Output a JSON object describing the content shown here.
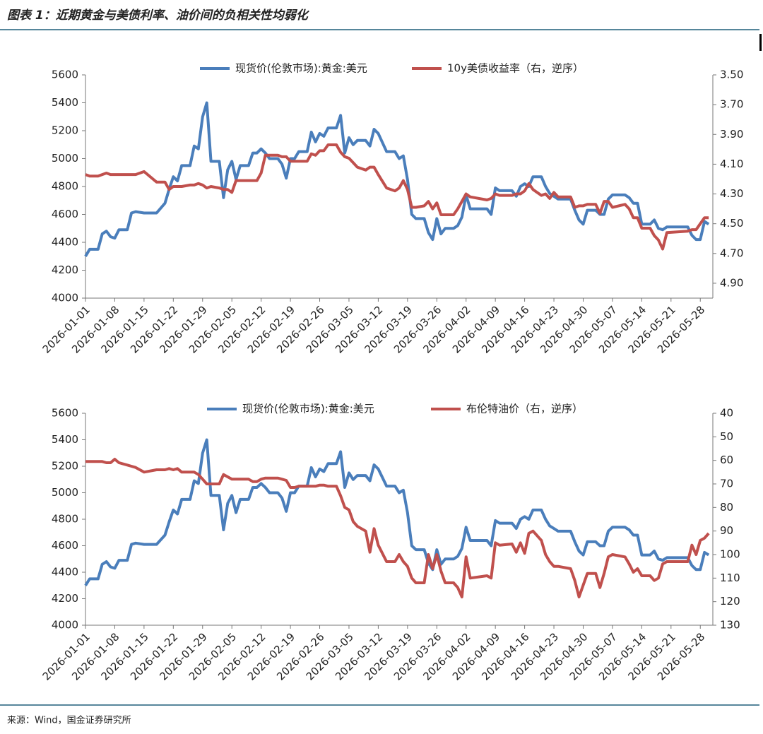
{
  "title": "图表 1：近期黄金与美债利率、油价间的负相关性均弱化",
  "source": "来源：Wind，国金证券研究所",
  "chart_data": [
    {
      "type": "line",
      "x": [
        "2026-01-01",
        "2026-01-02",
        "2026-01-04",
        "2026-01-05",
        "2026-01-06",
        "2026-01-07",
        "2026-01-08",
        "2026-01-09",
        "2026-01-11",
        "2026-01-12",
        "2026-01-13",
        "2026-01-15",
        "2026-01-18",
        "2026-01-20",
        "2026-01-21",
        "2026-01-22",
        "2026-01-23",
        "2026-01-24",
        "2026-01-26",
        "2026-01-27",
        "2026-01-28",
        "2026-01-29",
        "2026-01-30",
        "2026-01-31",
        "2026-02-02",
        "2026-02-03",
        "2026-02-04",
        "2026-02-05",
        "2026-02-06",
        "2026-02-07",
        "2026-02-09",
        "2026-02-10",
        "2026-02-11",
        "2026-02-12",
        "2026-02-13",
        "2026-02-14",
        "2026-02-16",
        "2026-02-17",
        "2026-02-18",
        "2026-02-19",
        "2026-02-20",
        "2026-02-21",
        "2026-02-23",
        "2026-02-24",
        "2026-02-25",
        "2026-02-26",
        "2026-02-27",
        "2026-02-28",
        "2026-03-02",
        "2026-03-03",
        "2026-03-04",
        "2026-03-05",
        "2026-03-06",
        "2026-03-07",
        "2026-03-09",
        "2026-03-10",
        "2026-03-11",
        "2026-03-12",
        "2026-03-14",
        "2026-03-16",
        "2026-03-17",
        "2026-03-18",
        "2026-03-19",
        "2026-03-20",
        "2026-03-21",
        "2026-03-23",
        "2026-03-24",
        "2026-03-25",
        "2026-03-26",
        "2026-03-27",
        "2026-03-28",
        "2026-03-30",
        "2026-03-31",
        "2026-04-01",
        "2026-04-02",
        "2026-04-03",
        "2026-04-07",
        "2026-04-08",
        "2026-04-09",
        "2026-04-10",
        "2026-04-13",
        "2026-04-14",
        "2026-04-15",
        "2026-04-16",
        "2026-04-17",
        "2026-04-18",
        "2026-04-20",
        "2026-04-21",
        "2026-04-22",
        "2026-04-23",
        "2026-04-24",
        "2026-04-27",
        "2026-04-28",
        "2026-04-29",
        "2026-04-30",
        "2026-05-01",
        "2026-05-03",
        "2026-05-04",
        "2026-05-05",
        "2026-05-06",
        "2026-05-07",
        "2026-05-10",
        "2026-05-11",
        "2026-05-12",
        "2026-05-13",
        "2026-05-14",
        "2026-05-16",
        "2026-05-17",
        "2026-05-18",
        "2026-05-19",
        "2026-05-20",
        "2026-05-25",
        "2026-05-26",
        "2026-05-27",
        "2026-05-28",
        "2026-05-29",
        "2026-05-30"
      ],
      "xlim": [
        "2026-01-01",
        "2026-05-31"
      ],
      "xticks": [
        "2026-01-01",
        "2026-01-08",
        "2026-01-15",
        "2026-01-22",
        "2026-01-29",
        "2026-02-05",
        "2026-02-12",
        "2026-02-19",
        "2026-02-26",
        "2026-03-05",
        "2026-03-12",
        "2026-03-19",
        "2026-03-26",
        "2026-04-02",
        "2026-04-09",
        "2026-04-16",
        "2026-04-23",
        "2026-04-30",
        "2026-05-07",
        "2026-05-14",
        "2026-05-21",
        "2026-05-28"
      ],
      "ylim": [
        4000,
        5600
      ],
      "yticks": [
        4000,
        4200,
        4400,
        4600,
        4800,
        5000,
        5200,
        5400,
        5600
      ],
      "y2lim": [
        3.5,
        5.0
      ],
      "y2_inverted": true,
      "y2ticks": [
        {
          "value": 3.5,
          "label": "3.50"
        },
        {
          "value": 3.7,
          "label": "3.70"
        },
        {
          "value": 3.9,
          "label": "3.90"
        },
        {
          "value": 4.1,
          "label": "4.10"
        },
        {
          "value": 4.3,
          "label": "4.30"
        },
        {
          "value": 4.5,
          "label": "4.50"
        },
        {
          "value": 4.7,
          "label": "4.70"
        },
        {
          "value": 4.9,
          "label": "4.90"
        }
      ],
      "grid": false,
      "legend": "top",
      "series": [
        {
          "name": "现货价(伦敦市场):黄金:美元",
          "color": "#4a7ebb",
          "axis": "y",
          "values": [
            4300,
            4350,
            4350,
            4460,
            4480,
            4440,
            4430,
            4490,
            4490,
            4610,
            4620,
            4610,
            4610,
            4680,
            4780,
            4870,
            4840,
            4950,
            4950,
            5090,
            5070,
            5300,
            5400,
            4980,
            4980,
            4720,
            4920,
            4980,
            4850,
            4950,
            4950,
            5040,
            5040,
            5070,
            5040,
            5000,
            5000,
            4960,
            4860,
            5000,
            5000,
            5050,
            5050,
            5190,
            5120,
            5180,
            5160,
            5220,
            5220,
            5310,
            5040,
            5150,
            5100,
            5130,
            5130,
            5090,
            5210,
            5180,
            5050,
            5050,
            5000,
            5020,
            4850,
            4600,
            4570,
            4570,
            4470,
            4420,
            4570,
            4460,
            4500,
            4500,
            4520,
            4580,
            4740,
            4640,
            4640,
            4600,
            4790,
            4770,
            4770,
            4730,
            4800,
            4820,
            4800,
            4870,
            4870,
            4800,
            4750,
            4730,
            4710,
            4710,
            4630,
            4560,
            4530,
            4630,
            4630,
            4600,
            4600,
            4710,
            4740,
            4740,
            4720,
            4680,
            4680,
            4530,
            4530,
            4560,
            4500,
            4490,
            4510,
            4510,
            4450,
            4420,
            4420,
            4550,
            4530
          ]
        },
        {
          "name": "10y美债收益率（右，逆序）",
          "color": "#c0504d",
          "axis": "y2",
          "values": [
            4.17,
            4.18,
            4.18,
            4.17,
            4.16,
            4.17,
            4.17,
            4.17,
            4.17,
            4.17,
            4.17,
            4.15,
            4.22,
            4.22,
            4.27,
            4.25,
            4.25,
            4.25,
            4.24,
            4.24,
            4.23,
            4.24,
            4.26,
            4.25,
            4.26,
            4.27,
            4.27,
            4.29,
            4.21,
            4.21,
            4.21,
            4.21,
            4.21,
            4.16,
            4.04,
            4.04,
            4.04,
            4.05,
            4.05,
            4.08,
            4.08,
            4.08,
            4.08,
            4.03,
            4.04,
            4.01,
            4.01,
            3.97,
            3.97,
            4.02,
            4.05,
            4.06,
            4.09,
            4.12,
            4.14,
            4.12,
            4.12,
            4.17,
            4.26,
            4.28,
            4.26,
            4.21,
            4.27,
            4.39,
            4.39,
            4.38,
            4.35,
            4.4,
            4.36,
            4.44,
            4.44,
            4.44,
            4.4,
            4.35,
            4.3,
            4.32,
            4.34,
            4.33,
            4.3,
            4.31,
            4.31,
            4.3,
            4.3,
            4.28,
            4.23,
            4.27,
            4.31,
            4.3,
            4.33,
            4.29,
            4.32,
            4.32,
            4.39,
            4.38,
            4.38,
            4.37,
            4.37,
            4.43,
            4.35,
            4.35,
            4.39,
            4.37,
            4.4,
            4.46,
            4.46,
            4.53,
            4.53,
            4.58,
            4.61,
            4.67,
            4.56,
            4.55,
            4.54,
            4.54,
            4.5,
            4.46,
            4.46
          ]
        }
      ]
    },
    {
      "type": "line",
      "x": [
        "2026-01-01",
        "2026-01-02",
        "2026-01-04",
        "2026-01-05",
        "2026-01-06",
        "2026-01-07",
        "2026-01-08",
        "2026-01-09",
        "2026-01-11",
        "2026-01-12",
        "2026-01-13",
        "2026-01-15",
        "2026-01-18",
        "2026-01-20",
        "2026-01-21",
        "2026-01-22",
        "2026-01-23",
        "2026-01-24",
        "2026-01-26",
        "2026-01-27",
        "2026-01-28",
        "2026-01-29",
        "2026-01-30",
        "2026-01-31",
        "2026-02-02",
        "2026-02-03",
        "2026-02-04",
        "2026-02-05",
        "2026-02-06",
        "2026-02-07",
        "2026-02-09",
        "2026-02-10",
        "2026-02-11",
        "2026-02-12",
        "2026-02-13",
        "2026-02-14",
        "2026-02-16",
        "2026-02-17",
        "2026-02-18",
        "2026-02-19",
        "2026-02-20",
        "2026-02-21",
        "2026-02-23",
        "2026-02-24",
        "2026-02-25",
        "2026-02-26",
        "2026-02-27",
        "2026-02-28",
        "2026-03-02",
        "2026-03-03",
        "2026-03-04",
        "2026-03-05",
        "2026-03-06",
        "2026-03-07",
        "2026-03-09",
        "2026-03-10",
        "2026-03-11",
        "2026-03-12",
        "2026-03-14",
        "2026-03-16",
        "2026-03-17",
        "2026-03-18",
        "2026-03-19",
        "2026-03-20",
        "2026-03-21",
        "2026-03-23",
        "2026-03-24",
        "2026-03-25",
        "2026-03-26",
        "2026-03-27",
        "2026-03-28",
        "2026-03-30",
        "2026-03-31",
        "2026-04-01",
        "2026-04-02",
        "2026-04-03",
        "2026-04-07",
        "2026-04-08",
        "2026-04-09",
        "2026-04-10",
        "2026-04-13",
        "2026-04-14",
        "2026-04-15",
        "2026-04-16",
        "2026-04-17",
        "2026-04-18",
        "2026-04-20",
        "2026-04-21",
        "2026-04-22",
        "2026-04-23",
        "2026-04-24",
        "2026-04-27",
        "2026-04-28",
        "2026-04-29",
        "2026-04-30",
        "2026-05-01",
        "2026-05-03",
        "2026-05-04",
        "2026-05-05",
        "2026-05-06",
        "2026-05-07",
        "2026-05-10",
        "2026-05-11",
        "2026-05-12",
        "2026-05-13",
        "2026-05-14",
        "2026-05-16",
        "2026-05-17",
        "2026-05-18",
        "2026-05-19",
        "2026-05-20",
        "2026-05-25",
        "2026-05-26",
        "2026-05-27",
        "2026-05-28",
        "2026-05-29",
        "2026-05-30"
      ],
      "xlim": [
        "2026-01-01",
        "2026-05-31"
      ],
      "xticks": [
        "2026-01-01",
        "2026-01-08",
        "2026-01-15",
        "2026-01-22",
        "2026-01-29",
        "2026-02-05",
        "2026-02-12",
        "2026-02-19",
        "2026-02-26",
        "2026-03-05",
        "2026-03-12",
        "2026-03-19",
        "2026-03-26",
        "2026-04-02",
        "2026-04-09",
        "2026-04-16",
        "2026-04-23",
        "2026-04-30",
        "2026-05-07",
        "2026-05-14",
        "2026-05-21",
        "2026-05-28"
      ],
      "ylim": [
        4000,
        5600
      ],
      "yticks": [
        4000,
        4200,
        4400,
        4600,
        4800,
        5000,
        5200,
        5400,
        5600
      ],
      "y2lim": [
        40,
        130
      ],
      "y2_inverted": true,
      "y2ticks": [
        40,
        50,
        60,
        70,
        80,
        90,
        100,
        110,
        120,
        130
      ],
      "grid": false,
      "legend": "top",
      "series": [
        {
          "name": "现货价(伦敦市场):黄金:美元",
          "color": "#4a7ebb",
          "axis": "y",
          "values": [
            4300,
            4350,
            4350,
            4460,
            4480,
            4440,
            4430,
            4490,
            4490,
            4610,
            4620,
            4610,
            4610,
            4680,
            4780,
            4870,
            4840,
            4950,
            4950,
            5090,
            5070,
            5300,
            5400,
            4980,
            4980,
            4720,
            4920,
            4980,
            4850,
            4950,
            4950,
            5040,
            5040,
            5070,
            5040,
            5000,
            5000,
            4960,
            4860,
            5000,
            5000,
            5050,
            5050,
            5190,
            5120,
            5180,
            5160,
            5220,
            5220,
            5310,
            5040,
            5150,
            5100,
            5130,
            5130,
            5090,
            5210,
            5180,
            5050,
            5050,
            5000,
            5020,
            4850,
            4600,
            4570,
            4570,
            4470,
            4420,
            4570,
            4460,
            4500,
            4500,
            4520,
            4580,
            4740,
            4640,
            4640,
            4600,
            4790,
            4770,
            4770,
            4730,
            4800,
            4820,
            4800,
            4870,
            4870,
            4800,
            4750,
            4730,
            4710,
            4710,
            4630,
            4560,
            4530,
            4630,
            4630,
            4600,
            4600,
            4710,
            4740,
            4740,
            4720,
            4680,
            4680,
            4530,
            4530,
            4560,
            4500,
            4490,
            4510,
            4510,
            4450,
            4420,
            4420,
            4550,
            4530
          ]
        },
        {
          "name": "布伦特油价（右，逆序）",
          "color": "#c0504d",
          "axis": "y2",
          "values": [
            60.5,
            60.5,
            60.5,
            60.5,
            61,
            61,
            59.5,
            61,
            62,
            62.5,
            63,
            65,
            64,
            64,
            63.5,
            64,
            63.5,
            65,
            65,
            65,
            66,
            68,
            70,
            70,
            70,
            66,
            67,
            68,
            68,
            68,
            68,
            69,
            69,
            68,
            67.5,
            67.5,
            67.5,
            68,
            68.5,
            71.5,
            71.5,
            71,
            71,
            71,
            71,
            70.5,
            70.5,
            71,
            71,
            75,
            80,
            81,
            86,
            88,
            90,
            99,
            89,
            96,
            103,
            103,
            100,
            103,
            105,
            110,
            112,
            112,
            100,
            106,
            100,
            107,
            112,
            112,
            114,
            118,
            101,
            110,
            109,
            110,
            95,
            96,
            95.5,
            99,
            95,
            99.5,
            91,
            90,
            94,
            100,
            103,
            105,
            105,
            106,
            111,
            118,
            113,
            108,
            108,
            114,
            108,
            101,
            100,
            101,
            104,
            107.5,
            106,
            109,
            109,
            111,
            110,
            104,
            103,
            103,
            96,
            100,
            94,
            93,
            91
          ]
        }
      ]
    }
  ]
}
